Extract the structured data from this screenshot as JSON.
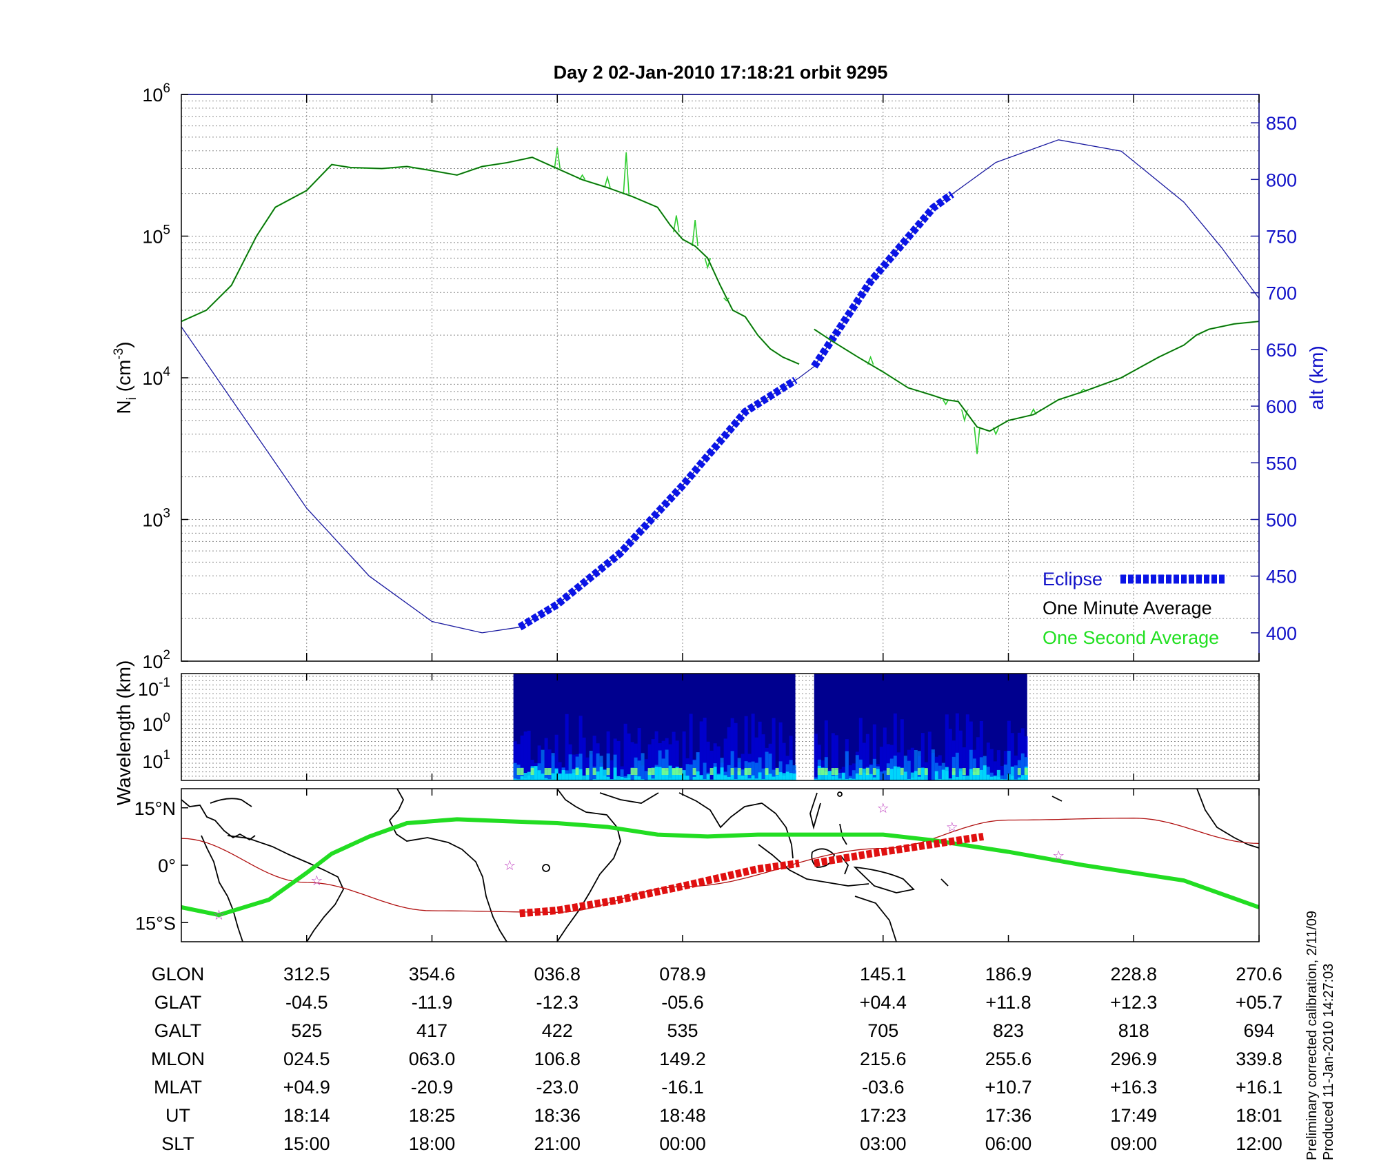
{
  "chart_data": [
    {
      "type": "line",
      "title": "Day 2  02-Jan-2010 17:18:21   orbit 9295",
      "ylabel_main": "N",
      "ylabel_sub": "i",
      "ylabel_unit_pre": " (cm",
      "ylabel_unit_exp": "-3",
      "ylabel_unit_post": ")",
      "y_scale": "log",
      "ylim": [
        100,
        1000000
      ],
      "y_ticks": [
        {
          "base": "10",
          "exp": "2",
          "value": 100
        },
        {
          "base": "10",
          "exp": "3",
          "value": 1000
        },
        {
          "base": "10",
          "exp": "4",
          "value": 10000
        },
        {
          "base": "10",
          "exp": "5",
          "value": 100000
        },
        {
          "base": "10",
          "exp": "6",
          "value": 1000000
        }
      ],
      "y2label": "alt (km)",
      "y2lim": [
        375,
        875
      ],
      "y2_ticks": [
        "400",
        "450",
        "500",
        "550",
        "600",
        "650",
        "700",
        "750",
        "800",
        "850"
      ],
      "x_index_range": [
        0,
        8.6
      ],
      "grid": true,
      "legend_position": "bottom-right",
      "legend": [
        {
          "label": "Eclipse",
          "color": "#0a14e6"
        },
        {
          "label": "One Minute Average",
          "color": "#000000"
        },
        {
          "label": "One Second Average",
          "color": "#22e022"
        }
      ],
      "series": [
        {
          "name": "One Minute Average",
          "color": "#0a5a0a",
          "segments": [
            [
              [
                0,
                25000
              ],
              [
                0.2,
                30000
              ],
              [
                0.4,
                45000
              ],
              [
                0.6,
                100000
              ],
              [
                0.75,
                160000
              ],
              [
                1.0,
                210000
              ],
              [
                1.2,
                320000
              ],
              [
                1.35,
                305000
              ],
              [
                1.6,
                300000
              ],
              [
                1.8,
                310000
              ],
              [
                2.0,
                290000
              ],
              [
                2.2,
                270000
              ],
              [
                2.4,
                310000
              ],
              [
                2.6,
                330000
              ],
              [
                2.8,
                360000
              ],
              [
                3.0,
                300000
              ],
              [
                3.2,
                250000
              ],
              [
                3.4,
                220000
              ],
              [
                3.6,
                190000
              ],
              [
                3.8,
                160000
              ],
              [
                3.9,
                120000
              ],
              [
                4.0,
                95000
              ],
              [
                4.1,
                85000
              ],
              [
                4.2,
                70000
              ],
              [
                4.3,
                45000
              ],
              [
                4.4,
                30000
              ],
              [
                4.5,
                27000
              ],
              [
                4.6,
                20000
              ],
              [
                4.7,
                16000
              ],
              [
                4.8,
                14000
              ],
              [
                4.93,
                12500
              ]
            ],
            [
              [
                5.05,
                22000
              ],
              [
                5.2,
                18000
              ],
              [
                5.4,
                14000
              ],
              [
                5.6,
                11000
              ],
              [
                5.8,
                8500
              ],
              [
                6.0,
                7500
              ],
              [
                6.1,
                7000
              ],
              [
                6.2,
                6800
              ],
              [
                6.35,
                4500
              ],
              [
                6.45,
                4200
              ],
              [
                6.6,
                5000
              ],
              [
                6.8,
                5500
              ],
              [
                7.0,
                7000
              ],
              [
                7.2,
                8000
              ],
              [
                7.5,
                10000
              ],
              [
                7.8,
                14000
              ],
              [
                8.0,
                17000
              ],
              [
                8.1,
                20000
              ],
              [
                8.2,
                22000
              ],
              [
                8.4,
                24000
              ],
              [
                8.6,
                25000
              ]
            ]
          ]
        },
        {
          "name": "One Second Average",
          "color": "#2ecc2e",
          "spikes": [
            [
              3.0,
              420000
            ],
            [
              3.2,
              270000
            ],
            [
              3.4,
              260000
            ],
            [
              3.55,
              390000
            ],
            [
              3.95,
              140000
            ],
            [
              4.1,
              130000
            ],
            [
              4.2,
              60000
            ],
            [
              4.35,
              35000
            ],
            [
              5.5,
              14000
            ],
            [
              6.1,
              6500
            ],
            [
              6.25,
              5000
            ],
            [
              6.35,
              2900
            ],
            [
              6.5,
              4000
            ],
            [
              6.8,
              6000
            ],
            [
              7.2,
              8300
            ]
          ]
        },
        {
          "name": "alt",
          "axis": "right",
          "color": "#1a1aa0",
          "points": [
            [
              0,
              670
            ],
            [
              0.5,
              590
            ],
            [
              1.0,
              510
            ],
            [
              1.5,
              450
            ],
            [
              2.0,
              410
            ],
            [
              2.4,
              400
            ],
            [
              2.7,
              405
            ],
            [
              3.0,
              425
            ],
            [
              3.5,
              470
            ],
            [
              4.0,
              530
            ],
            [
              4.5,
              595
            ],
            [
              4.93,
              625
            ],
            [
              5.05,
              635
            ],
            [
              5.5,
              710
            ],
            [
              6.0,
              775
            ],
            [
              6.5,
              815
            ],
            [
              7.0,
              835
            ],
            [
              7.5,
              825
            ],
            [
              8.0,
              780
            ],
            [
              8.3,
              740
            ],
            [
              8.6,
              695
            ]
          ]
        }
      ],
      "eclipse_segments": [
        [
          2.7,
          4.93
        ],
        [
          5.05,
          6.15
        ]
      ]
    },
    {
      "type": "heatmap",
      "ylabel": "Wavelength (km)",
      "y_scale": "log",
      "y_ticks": [
        {
          "base": "10",
          "exp": "-1"
        },
        {
          "base": "10",
          "exp": "0"
        },
        {
          "base": "10",
          "exp": "1"
        }
      ],
      "data_ranges": [
        [
          2.65,
          4.9
        ],
        [
          5.05,
          6.75
        ]
      ],
      "colormap": [
        "#00008f",
        "#0000ff",
        "#0080ff",
        "#00ffff",
        "#80ff80",
        "#ffff00"
      ]
    },
    {
      "type": "map",
      "y_ticks": [
        "15°N",
        "0°",
        "15°S"
      ],
      "ylim": [
        -20,
        20
      ],
      "satellite_track_color": "#b01010",
      "magnetic_equator_color": "#22dd22",
      "track_eclipse_color": "#e01010"
    }
  ],
  "table": {
    "rows": [
      {
        "label": "GLON",
        "values": [
          "312.5",
          "354.6",
          "036.8",
          "078.9",
          "145.1",
          "186.9",
          "228.8",
          "270.6"
        ]
      },
      {
        "label": "GLAT",
        "values": [
          "-04.5",
          "-11.9",
          "-12.3",
          "-05.6",
          "+04.4",
          "+11.8",
          "+12.3",
          "+05.7"
        ]
      },
      {
        "label": "GALT",
        "values": [
          "525",
          "417",
          "422",
          "535",
          "705",
          "823",
          "818",
          "694"
        ]
      },
      {
        "label": "MLON",
        "values": [
          "024.5",
          "063.0",
          "106.8",
          "149.2",
          "215.6",
          "255.6",
          "296.9",
          "339.8"
        ]
      },
      {
        "label": "MLAT",
        "values": [
          "+04.9",
          "-20.9",
          "-23.0",
          "-16.1",
          "-03.6",
          "+10.7",
          "+16.3",
          "+16.1"
        ]
      },
      {
        "label": "UT",
        "values": [
          "18:14",
          "18:25",
          "18:36",
          "18:48",
          "17:23",
          "17:36",
          "17:49",
          "18:01"
        ]
      },
      {
        "label": "SLT",
        "values": [
          "15:00",
          "18:00",
          "21:00",
          "00:00",
          "03:00",
          "06:00",
          "09:00",
          "12:00"
        ]
      }
    ]
  },
  "footer": {
    "line1": "Preliminary corrected calibration, 2/11/09",
    "line2": "Produced 11-Jan-2010 14:27:03"
  }
}
